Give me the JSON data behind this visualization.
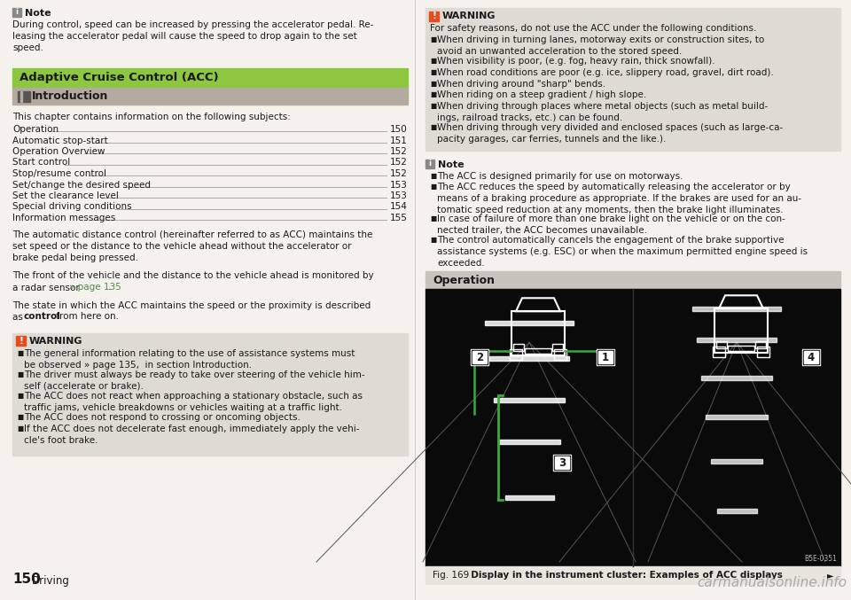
{
  "bg_color": "#f5f2ed",
  "green_header_color": "#8dc63f",
  "gray_header_color": "#b5aaa0",
  "warning_bg": "#dedad4",
  "warning_icon_color": "#e84c1e",
  "info_icon_color": "#888888",
  "link_color": "#4a8c4a",
  "text_color": "#1a1a1a",
  "page_bg": "#f5f2ed",
  "col_divider": "#cccccc",
  "op_header_color": "#c8c3bc",
  "cap_bg": "#e8e4de",
  "left_col": {
    "note_title": "Note",
    "note_body": "During control, speed can be increased by pressing the accelerator pedal. Re-\nleasing the accelerator pedal will cause the speed to drop again to the set\nspeed.",
    "green_header": "Adaptive Cruise Control (ACC)",
    "gray_subheader": "Introduction",
    "intro_text": "This chapter contains information on the following subjects:",
    "toc": [
      [
        "Operation",
        "150"
      ],
      [
        "Automatic stop-start",
        "151"
      ],
      [
        "Operation Overview",
        "152"
      ],
      [
        "Start control",
        "152"
      ],
      [
        "Stop/resume control",
        "152"
      ],
      [
        "Set/change the desired speed",
        "153"
      ],
      [
        "Set the clearance level",
        "153"
      ],
      [
        "Special driving conditions",
        "154"
      ],
      [
        "Information messages",
        "155"
      ]
    ],
    "body1": "The automatic distance control (hereinafter referred to as ACC) maintains the\nset speed or the distance to the vehicle ahead without the accelerator or\nbrake pedal being pressed.",
    "body2_main": "The front of the vehicle and the distance to the vehicle ahead is monitored by\na radar sensor ",
    "body2_link": "» page 135",
    "body2_post": ".",
    "body3_main": "The state in which the ACC maintains the speed or the proximity is described\nas ",
    "body3_bold": "control",
    "body3_post": " from here on.",
    "warning_title": "WARNING",
    "warning_items": [
      "The general information relating to the use of assistance systems must\nbe observed » page 135,  in section Introduction.",
      "The driver must always be ready to take over steering of the vehicle him-\nself (accelerate or brake).",
      "The ACC does not react when approaching a stationary obstacle, such as\ntraffic jams, vehicle breakdowns or vehicles waiting at a traffic light.",
      "The ACC does not respond to crossing or oncoming objects.",
      "If the ACC does not decelerate fast enough, immediately apply the vehi-\ncle's foot brake."
    ]
  },
  "right_col": {
    "warning_title": "WARNING",
    "warning_intro": "For safety reasons, do not use the ACC under the following conditions.",
    "warning_items": [
      "When driving in turning lanes, motorway exits or construction sites, to\navoid an unwanted acceleration to the stored speed.",
      "When visibility is poor, (e.g. fog, heavy rain, thick snowfall).",
      "When road conditions are poor (e.g. ice, slippery road, gravel, dirt road).",
      "When driving around \"sharp\" bends.",
      "When riding on a steep gradient / high slope.",
      "When driving through places where metal objects (such as metal build-\nings, railroad tracks, etc.) can be found.",
      "When driving through very divided and enclosed spaces (such as large-ca-\npacity garages, car ferries, tunnels and the like.)."
    ],
    "note_title": "Note",
    "note_items": [
      "The ACC is designed primarily for use on motorways.",
      "The ACC reduces the speed by automatically releasing the accelerator or by\nmeans of a braking procedure as appropriate. If the brakes are used for an au-\ntomatic speed reduction at any moments, then the brake light illuminates.",
      "In case of failure of more than one brake light on the vehicle or on the con-\nnected trailer, the ACC becomes unavailable.",
      "The control automatically cancels the engagement of the brake supportive\nassistance systems (e.g. ESC) or when the maximum permitted engine speed is\nexceeded."
    ],
    "operation_header": "Operation",
    "fig_caption": "Fig. 169",
    "fig_caption_bold": "  Display in the instrument cluster: Examples of ACC displays",
    "fig_code": "B5E-0351"
  },
  "footer_page": "150",
  "footer_section": "Driving",
  "watermark": "carmanualsonline.info"
}
